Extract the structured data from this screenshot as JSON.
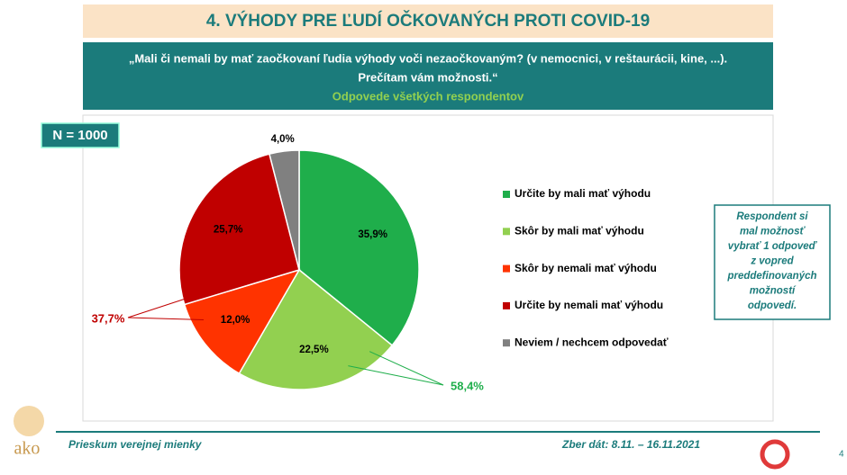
{
  "header": {
    "title": "4. VÝHODY PRE ĽUDÍ OČKOVANÝCH PROTI COVID-19",
    "question": "„Mali či nemali by mať zaočkovaní ľudia výhody voči nezaočkovaným? (v nemocnici, v reštaurácii, kine, ...).",
    "question_line2": "Prečítam vám možnosti.“",
    "subtitle": "Odpovede všetkých respondentov"
  },
  "sample": "N = 1000",
  "note": [
    "Respondent si",
    "mal možnosť",
    "vybrať 1 odpoveď",
    "z vopred",
    "preddefinovaných",
    "možností",
    "odpovedí."
  ],
  "footer": {
    "left": "Prieskum verejnej mienky",
    "right": "Zber dát: 8.11. – 16.11.2021",
    "page": "4",
    "logo": "ako"
  },
  "chart_data": {
    "type": "pie",
    "categories": [
      "Určite by mali mať výhodu",
      "Skôr by mali mať výhodu",
      "Skôr by nemali mať výhodu",
      "Určite by nemali mať výhodu",
      "Neviem / nechcem odpovedať"
    ],
    "values": [
      35.9,
      22.5,
      12.0,
      25.7,
      4.0
    ],
    "value_labels": [
      "35,9%",
      "22,5%",
      "12,0%",
      "25,7%",
      "4,0%"
    ],
    "colors": [
      "#1fae4b",
      "#92d050",
      "#ff3300",
      "#c00000",
      "#808080"
    ],
    "group_labels": [
      {
        "value": 58.4,
        "label": "58,4%",
        "color": "#1fae4b"
      },
      {
        "value": 37.7,
        "label": "37,7%",
        "color": "#c00000"
      }
    ],
    "legend": "right"
  }
}
